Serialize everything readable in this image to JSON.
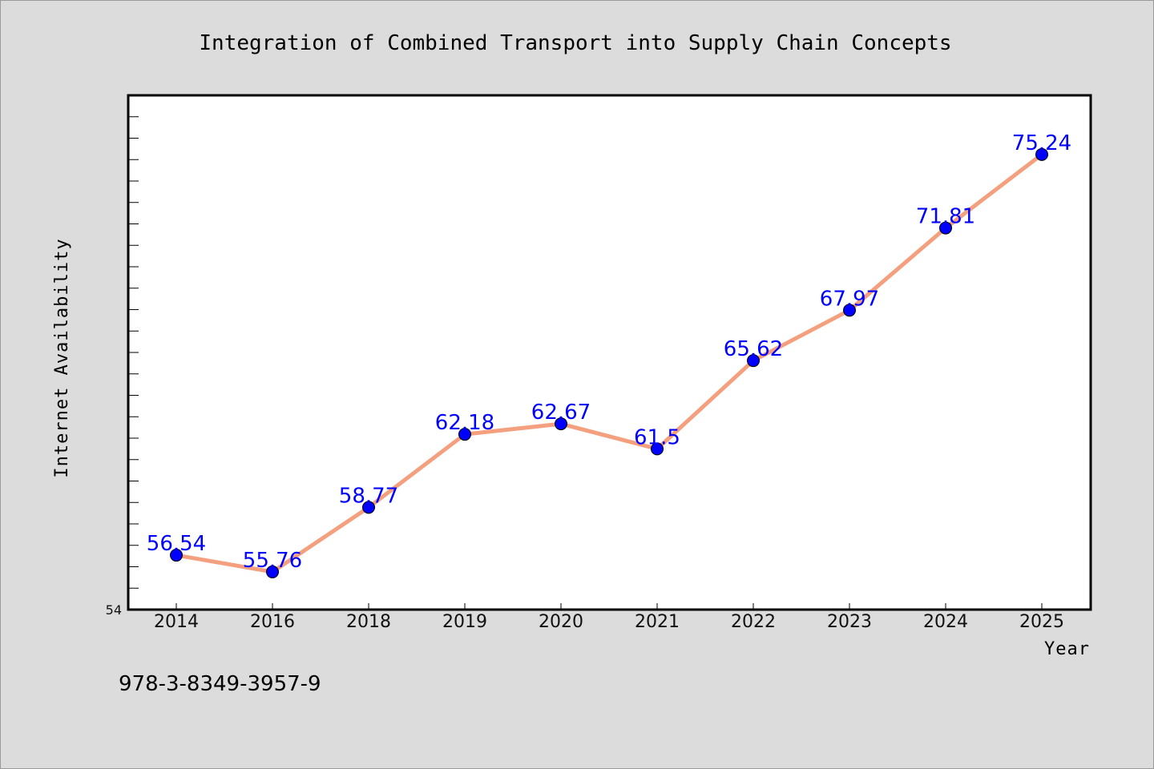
{
  "chart_data": {
    "type": "line",
    "title": "Integration of Combined Transport into Supply Chain Concepts",
    "xlabel": "Year",
    "ylabel": "Internet Availability",
    "categories": [
      "2014",
      "2016",
      "2018",
      "2019",
      "2020",
      "2021",
      "2022",
      "2023",
      "2024",
      "2025"
    ],
    "series": [
      {
        "values": [
          56.54,
          55.76,
          58.77,
          62.18,
          62.67,
          61.5,
          65.62,
          67.97,
          71.81,
          75.24
        ],
        "labels": [
          "56.54",
          "55.76",
          "58.77",
          "62.18",
          "62.67",
          "61.5",
          "65.62",
          "67.97",
          "71.81",
          "75.24"
        ]
      }
    ],
    "ylim": [
      54,
      78
    ],
    "ytick_labels": [
      "54"
    ],
    "grid": false,
    "colors": {
      "line": "#f4a07f",
      "marker": "#0000ff",
      "label": "#0000ff"
    }
  },
  "footer": {
    "text": "978-3-8349-3957-9"
  }
}
